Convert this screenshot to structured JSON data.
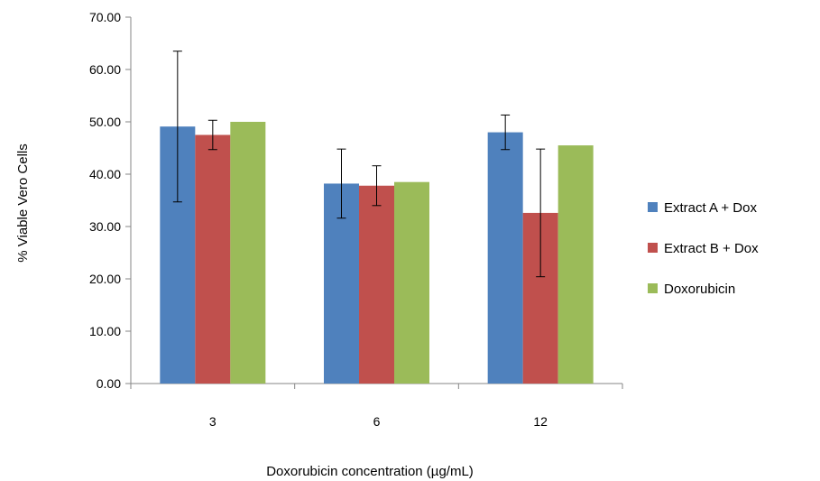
{
  "chart_data": {
    "type": "bar",
    "title": "",
    "xlabel": "Doxorubicin concentration (µg/mL)",
    "ylabel": "% Viable Vero Cells",
    "categories": [
      "3",
      "6",
      "12"
    ],
    "ylim": [
      0,
      70
    ],
    "yticks": [
      "0.00",
      "10.00",
      "20.00",
      "30.00",
      "40.00",
      "50.00",
      "60.00",
      "70.00"
    ],
    "grid": false,
    "legend_position": "right",
    "series": [
      {
        "name": "Extract A + Dox",
        "color": "#4F81BD",
        "values": [
          49.1,
          38.2,
          48.0
        ],
        "errors": [
          14.4,
          6.6,
          3.3
        ]
      },
      {
        "name": "Extract B + Dox",
        "color": "#C0504D",
        "values": [
          47.5,
          37.8,
          32.6
        ],
        "errors": [
          2.8,
          3.8,
          12.2
        ]
      },
      {
        "name": "Doxorubicin",
        "color": "#9BBB59",
        "values": [
          50.0,
          38.5,
          45.5
        ],
        "errors": null
      }
    ]
  }
}
